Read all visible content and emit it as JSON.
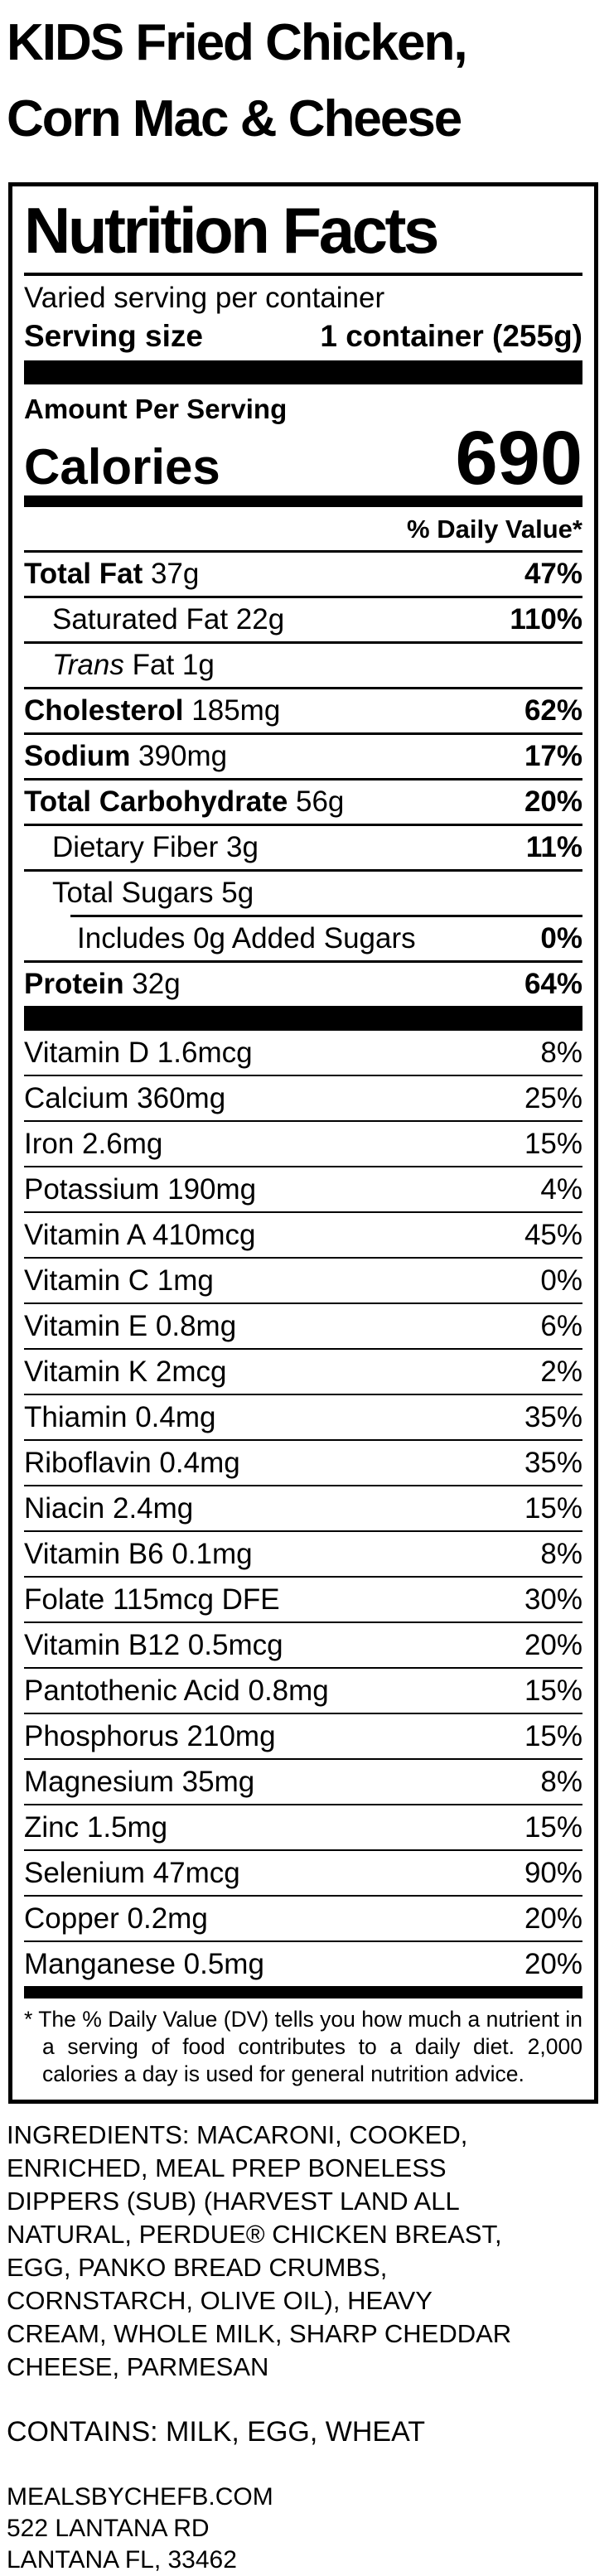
{
  "product": {
    "title_line1": "KIDS Fried Chicken,",
    "title_line2": "Corn Mac & Cheese"
  },
  "label": {
    "title": "Nutrition Facts",
    "serving_info": "Varied serving per container",
    "serving_size_label": "Serving size",
    "serving_size_value": "1 container (255g)",
    "amount_per_serving": "Amount Per Serving",
    "calories_label": "Calories",
    "calories_value": "690",
    "daily_value_header": "% Daily Value*",
    "main_rows": [
      {
        "name": "Total Fat",
        "amount": "37g",
        "dv": "47%",
        "bold": true,
        "indent": 0
      },
      {
        "name": "Saturated Fat",
        "amount": "22g",
        "dv": "110%",
        "bold": false,
        "indent": 1
      },
      {
        "italic_prefix": "Trans",
        "name": "Fat",
        "amount": "1g",
        "dv": "",
        "bold": false,
        "indent": 1
      },
      {
        "name": "Cholesterol",
        "amount": "185mg",
        "dv": "62%",
        "bold": true,
        "indent": 0
      },
      {
        "name": "Sodium",
        "amount": "390mg",
        "dv": "17%",
        "bold": true,
        "indent": 0
      },
      {
        "name": "Total Carbohydrate",
        "amount": "56g",
        "dv": "20%",
        "bold": true,
        "indent": 0
      },
      {
        "name": "Dietary Fiber",
        "amount": "3g",
        "dv": "11%",
        "bold": false,
        "indent": 1
      },
      {
        "name": "Total Sugars",
        "amount": "5g",
        "dv": "",
        "bold": false,
        "indent": 1
      },
      {
        "name": "Includes 0g Added Sugars",
        "amount": "",
        "dv": "0%",
        "bold": false,
        "indent": 2,
        "partial_rule": true
      },
      {
        "name": "Protein",
        "amount": "32g",
        "dv": "64%",
        "bold": true,
        "indent": 0
      }
    ],
    "micronutrient_rows": [
      {
        "name": "Vitamin D",
        "amount": "1.6mcg",
        "dv": "8%"
      },
      {
        "name": "Calcium",
        "amount": "360mg",
        "dv": "25%"
      },
      {
        "name": "Iron",
        "amount": "2.6mg",
        "dv": "15%"
      },
      {
        "name": "Potassium",
        "amount": "190mg",
        "dv": "4%"
      },
      {
        "name": "Vitamin A",
        "amount": "410mcg",
        "dv": "45%"
      },
      {
        "name": "Vitamin C",
        "amount": "1mg",
        "dv": "0%"
      },
      {
        "name": "Vitamin E",
        "amount": "0.8mg",
        "dv": "6%"
      },
      {
        "name": "Vitamin K",
        "amount": "2mcg",
        "dv": "2%"
      },
      {
        "name": "Thiamin",
        "amount": "0.4mg",
        "dv": "35%"
      },
      {
        "name": "Riboflavin",
        "amount": "0.4mg",
        "dv": "35%"
      },
      {
        "name": "Niacin",
        "amount": "2.4mg",
        "dv": "15%"
      },
      {
        "name": "Vitamin B6",
        "amount": "0.1mg",
        "dv": "8%"
      },
      {
        "name": "Folate",
        "amount": "115mcg DFE",
        "dv": "30%"
      },
      {
        "name": "Vitamin B12",
        "amount": "0.5mcg",
        "dv": "20%"
      },
      {
        "name": "Pantothenic Acid",
        "amount": "0.8mg",
        "dv": "15%"
      },
      {
        "name": "Phosphorus",
        "amount": "210mg",
        "dv": "15%"
      },
      {
        "name": "Magnesium",
        "amount": "35mg",
        "dv": "8%"
      },
      {
        "name": "Zinc",
        "amount": "1.5mg",
        "dv": "15%"
      },
      {
        "name": "Selenium",
        "amount": "47mcg",
        "dv": "90%"
      },
      {
        "name": "Copper",
        "amount": "0.2mg",
        "dv": "20%"
      },
      {
        "name": "Manganese",
        "amount": "0.5mg",
        "dv": "20%"
      }
    ],
    "footnote": "* The % Daily Value (DV) tells you how much a nutrient in a serving of food contributes to a daily diet. 2,000 calories a day is used for general nutrition advice."
  },
  "ingredients": "INGREDIENTS: MACARONI, COOKED, ENRICHED, MEAL PREP BONELESS DIPPERS (SUB) (HARVEST LAND ALL NATURAL, PERDUE® CHICKEN BREAST, EGG, PANKO BREAD CRUMBS, CORNSTARCH, OLIVE OIL), HEAVY CREAM, WHOLE MILK, SHARP CHEDDAR CHEESE, PARMESAN",
  "contains": "CONTAINS: MILK, EGG, WHEAT",
  "footer": {
    "website": "MEALSBYCHEFB.COM",
    "address_line1": "522 LANTANA RD",
    "address_line2": "LANTANA FL, 33462"
  }
}
